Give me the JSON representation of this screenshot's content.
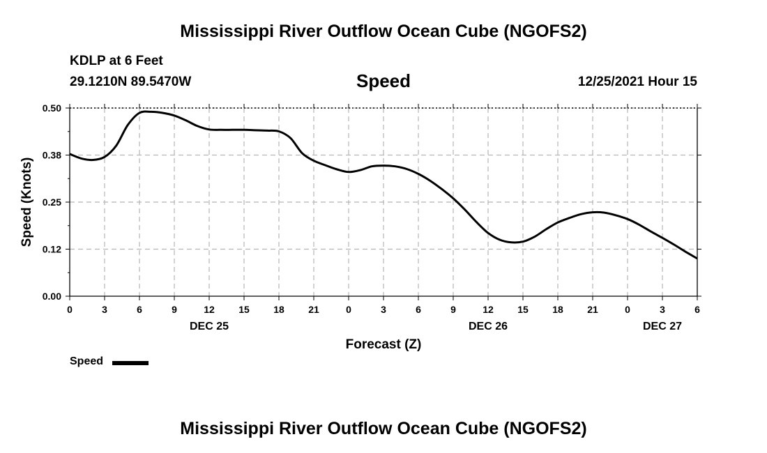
{
  "page_title": "Mississippi River Outflow Ocean Cube (NGOFS2)",
  "footer_title": "Mississippi River Outflow Ocean Cube (NGOFS2)",
  "station": {
    "name": "KDLP at 6 Feet",
    "coords": "29.1210N  89.5470W",
    "datetime": "12/25/2021 Hour 15"
  },
  "chart_data": {
    "type": "line",
    "title": "Speed",
    "xlabel": "Forecast (Z)",
    "ylabel": "Speed (Knots)",
    "ylim": [
      0,
      0.5
    ],
    "xlim": [
      0,
      54
    ],
    "yticks": [
      "0.00",
      "0.12",
      "0.25",
      "0.38",
      "0.50"
    ],
    "ytick_values": [
      0,
      0.125,
      0.25,
      0.375,
      0.5
    ],
    "xtick_hours": [
      0,
      3,
      6,
      9,
      12,
      15,
      18,
      21,
      24,
      27,
      30,
      33,
      36,
      39,
      42,
      45,
      48,
      51,
      54
    ],
    "xtick_labels": [
      "0",
      "3",
      "6",
      "9",
      "12",
      "15",
      "18",
      "21",
      "0",
      "3",
      "6",
      "9",
      "12",
      "15",
      "18",
      "21",
      "0",
      "3",
      "6"
    ],
    "date_labels": [
      {
        "hour": 12,
        "label": "DEC 25"
      },
      {
        "hour": 36,
        "label": "DEC 26"
      },
      {
        "hour": 51,
        "label": "DEC 27"
      }
    ],
    "grid": true,
    "legend": "bottom-left",
    "series": [
      {
        "name": "Speed",
        "color": "#000000",
        "x": [
          0,
          1,
          2,
          3,
          4,
          5,
          6,
          7,
          8,
          9,
          10,
          11,
          12,
          13,
          14,
          15,
          16,
          17,
          18,
          19,
          20,
          21,
          22,
          23,
          24,
          25,
          26,
          27,
          28,
          29,
          30,
          31,
          32,
          33,
          34,
          35,
          36,
          37,
          38,
          39,
          40,
          41,
          42,
          43,
          44,
          45,
          46,
          47,
          48,
          49,
          50,
          51,
          52,
          53,
          54
        ],
        "values": [
          0.378,
          0.366,
          0.362,
          0.37,
          0.4,
          0.455,
          0.487,
          0.49,
          0.487,
          0.48,
          0.467,
          0.452,
          0.443,
          0.442,
          0.442,
          0.442,
          0.441,
          0.44,
          0.438,
          0.42,
          0.38,
          0.36,
          0.348,
          0.337,
          0.33,
          0.335,
          0.345,
          0.347,
          0.345,
          0.338,
          0.325,
          0.307,
          0.285,
          0.26,
          0.23,
          0.197,
          0.168,
          0.15,
          0.143,
          0.145,
          0.158,
          0.178,
          0.196,
          0.208,
          0.218,
          0.223,
          0.222,
          0.215,
          0.205,
          0.19,
          0.172,
          0.155,
          0.137,
          0.118,
          0.1
        ]
      }
    ]
  }
}
